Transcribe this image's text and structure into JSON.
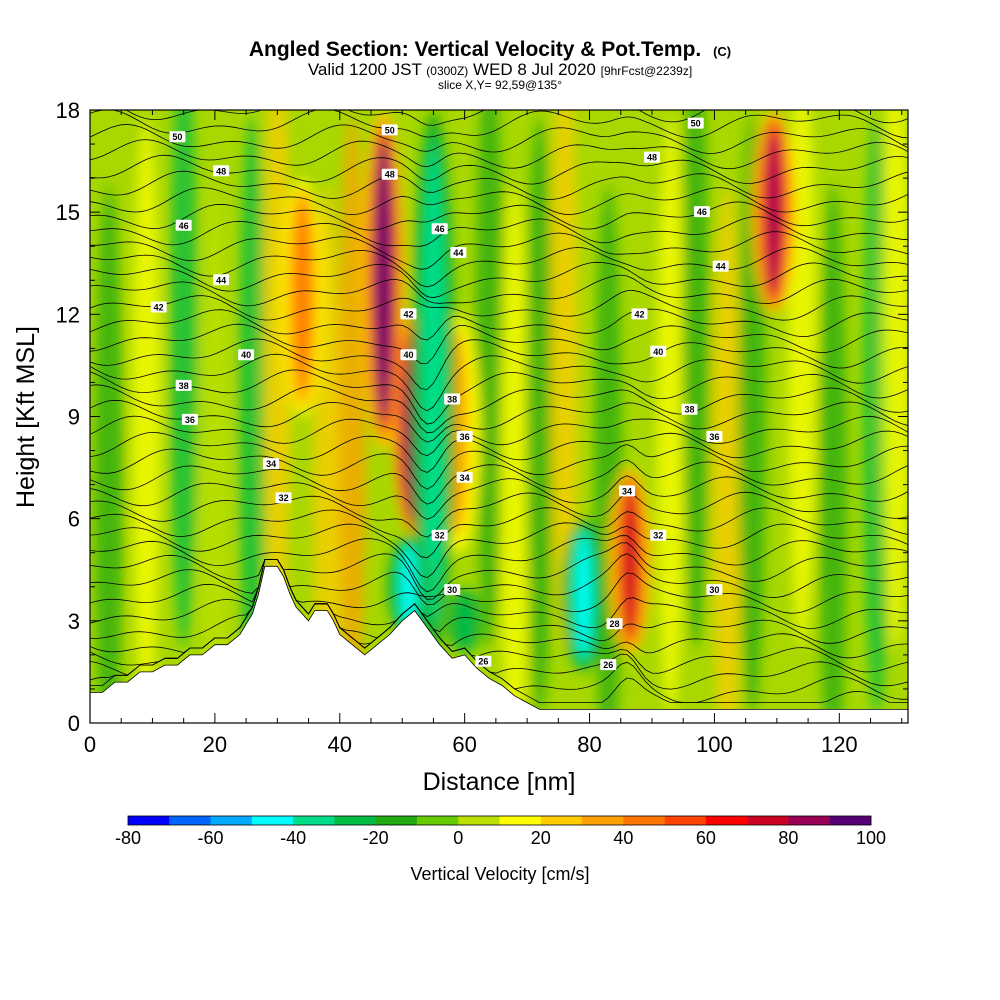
{
  "chart_data": {
    "type": "heatmap",
    "title": "Angled Section: Vertical Velocity & Pot.Temp.",
    "title_note": "(C)",
    "subtitle_parts": [
      "Valid 1200 JST",
      "(0300Z)",
      "WED 8 Jul 2020",
      "[9hrFcst@2239z]"
    ],
    "slice_line": "slice X,Y= 92,59@135°",
    "xlabel": "Distance [nm]",
    "ylabel": "Height [Kft MSL]",
    "xlim": [
      0,
      131
    ],
    "ylim": [
      0,
      18
    ],
    "x_ticks": [
      0,
      20,
      40,
      60,
      80,
      100,
      120
    ],
    "y_ticks": [
      0,
      3,
      6,
      9,
      12,
      15,
      18
    ],
    "colorbar": {
      "label": "Vertical Velocity [cm/s]",
      "ticks": [
        -80,
        -60,
        -40,
        -20,
        0,
        20,
        40,
        60,
        80,
        100
      ],
      "range": [
        -80,
        100
      ],
      "colors": [
        "#0000ff",
        "#0066ff",
        "#00aaff",
        "#00ffff",
        "#00dd88",
        "#00bb44",
        "#22aa11",
        "#66cc00",
        "#bbe000",
        "#ffff00",
        "#ffcc00",
        "#ffa000",
        "#ff7700",
        "#ff4400",
        "#ff0000",
        "#cc0022",
        "#990055",
        "#550077"
      ]
    },
    "updrafts": [
      {
        "x": 47,
        "y0": 8,
        "y1": 18,
        "w": 90
      },
      {
        "x": 52,
        "y0": 5.5,
        "y1": 12,
        "w": 100
      },
      {
        "x": 86.5,
        "y0": 2,
        "y1": 7.5,
        "w": 70
      },
      {
        "x": 109.5,
        "y0": 12,
        "y1": 18,
        "w": 80
      },
      {
        "x": 34,
        "y0": 9,
        "y1": 16,
        "w": 45
      },
      {
        "x": 59,
        "y0": 5,
        "y1": 12,
        "w": 35
      }
    ],
    "downdrafts": [
      {
        "x": 55,
        "y0": 2,
        "y1": 18,
        "w": -40
      },
      {
        "x": 79,
        "y0": 1.5,
        "y1": 6,
        "w": -45
      },
      {
        "x": 51,
        "y0": 2.5,
        "y1": 5.5,
        "w": -50
      },
      {
        "x": 60,
        "y0": 2,
        "y1": 4,
        "w": -30
      }
    ],
    "theta_contours": [
      26,
      28,
      30,
      32,
      34,
      36,
      38,
      40,
      42,
      44,
      46,
      48,
      50
    ],
    "theta_labels": [
      {
        "text": "50",
        "x": 14,
        "y": 17.2
      },
      {
        "text": "48",
        "x": 21,
        "y": 16.2
      },
      {
        "text": "46",
        "x": 15,
        "y": 14.6
      },
      {
        "text": "44",
        "x": 21,
        "y": 13.0
      },
      {
        "text": "42",
        "x": 11,
        "y": 12.2
      },
      {
        "text": "40",
        "x": 25,
        "y": 10.8
      },
      {
        "text": "38",
        "x": 15,
        "y": 9.9
      },
      {
        "text": "36",
        "x": 16,
        "y": 8.9
      },
      {
        "text": "34",
        "x": 29,
        "y": 7.6
      },
      {
        "text": "32",
        "x": 31,
        "y": 6.6
      },
      {
        "text": "50",
        "x": 48,
        "y": 17.4
      },
      {
        "text": "48",
        "x": 48,
        "y": 16.1
      },
      {
        "text": "46",
        "x": 56,
        "y": 14.5
      },
      {
        "text": "44",
        "x": 59,
        "y": 13.8
      },
      {
        "text": "42",
        "x": 51,
        "y": 12.0
      },
      {
        "text": "40",
        "x": 51,
        "y": 10.8
      },
      {
        "text": "38",
        "x": 58,
        "y": 9.5
      },
      {
        "text": "36",
        "x": 60,
        "y": 8.4
      },
      {
        "text": "34",
        "x": 60,
        "y": 7.2
      },
      {
        "text": "32",
        "x": 56,
        "y": 5.5
      },
      {
        "text": "30",
        "x": 58,
        "y": 3.9
      },
      {
        "text": "26",
        "x": 63,
        "y": 1.8
      },
      {
        "text": "50",
        "x": 97,
        "y": 17.6
      },
      {
        "text": "48",
        "x": 90,
        "y": 16.6
      },
      {
        "text": "46",
        "x": 98,
        "y": 15.0
      },
      {
        "text": "44",
        "x": 101,
        "y": 13.4
      },
      {
        "text": "42",
        "x": 88,
        "y": 12.0
      },
      {
        "text": "40",
        "x": 91,
        "y": 10.9
      },
      {
        "text": "38",
        "x": 96,
        "y": 9.2
      },
      {
        "text": "36",
        "x": 100,
        "y": 8.4
      },
      {
        "text": "34",
        "x": 86,
        "y": 6.8
      },
      {
        "text": "32",
        "x": 91,
        "y": 5.5
      },
      {
        "text": "30",
        "x": 100,
        "y": 3.9
      },
      {
        "text": "28",
        "x": 84,
        "y": 2.9
      },
      {
        "text": "26",
        "x": 83,
        "y": 1.7
      }
    ],
    "terrain": [
      [
        0,
        0.9
      ],
      [
        2,
        0.9
      ],
      [
        4,
        1.2
      ],
      [
        6,
        1.2
      ],
      [
        8,
        1.5
      ],
      [
        10,
        1.5
      ],
      [
        12,
        1.7
      ],
      [
        14,
        1.7
      ],
      [
        16,
        2.0
      ],
      [
        18,
        2.0
      ],
      [
        20,
        2.3
      ],
      [
        22,
        2.3
      ],
      [
        24,
        2.6
      ],
      [
        25,
        2.9
      ],
      [
        26,
        3.2
      ],
      [
        27,
        3.8
      ],
      [
        28,
        4.6
      ],
      [
        30,
        4.6
      ],
      [
        31,
        4.3
      ],
      [
        32,
        3.8
      ],
      [
        33,
        3.4
      ],
      [
        34,
        3.2
      ],
      [
        35,
        3.0
      ],
      [
        36,
        3.3
      ],
      [
        38,
        3.3
      ],
      [
        39,
        3.0
      ],
      [
        40,
        2.6
      ],
      [
        42,
        2.3
      ],
      [
        44,
        2.0
      ],
      [
        46,
        2.3
      ],
      [
        48,
        2.6
      ],
      [
        50,
        3.0
      ],
      [
        52,
        3.3
      ],
      [
        54,
        2.8
      ],
      [
        56,
        2.3
      ],
      [
        58,
        1.9
      ],
      [
        60,
        2.0
      ],
      [
        62,
        1.6
      ],
      [
        64,
        1.3
      ],
      [
        66,
        1.1
      ],
      [
        68,
        0.8
      ],
      [
        70,
        0.6
      ],
      [
        72,
        0.4
      ],
      [
        131,
        0.4
      ]
    ]
  }
}
